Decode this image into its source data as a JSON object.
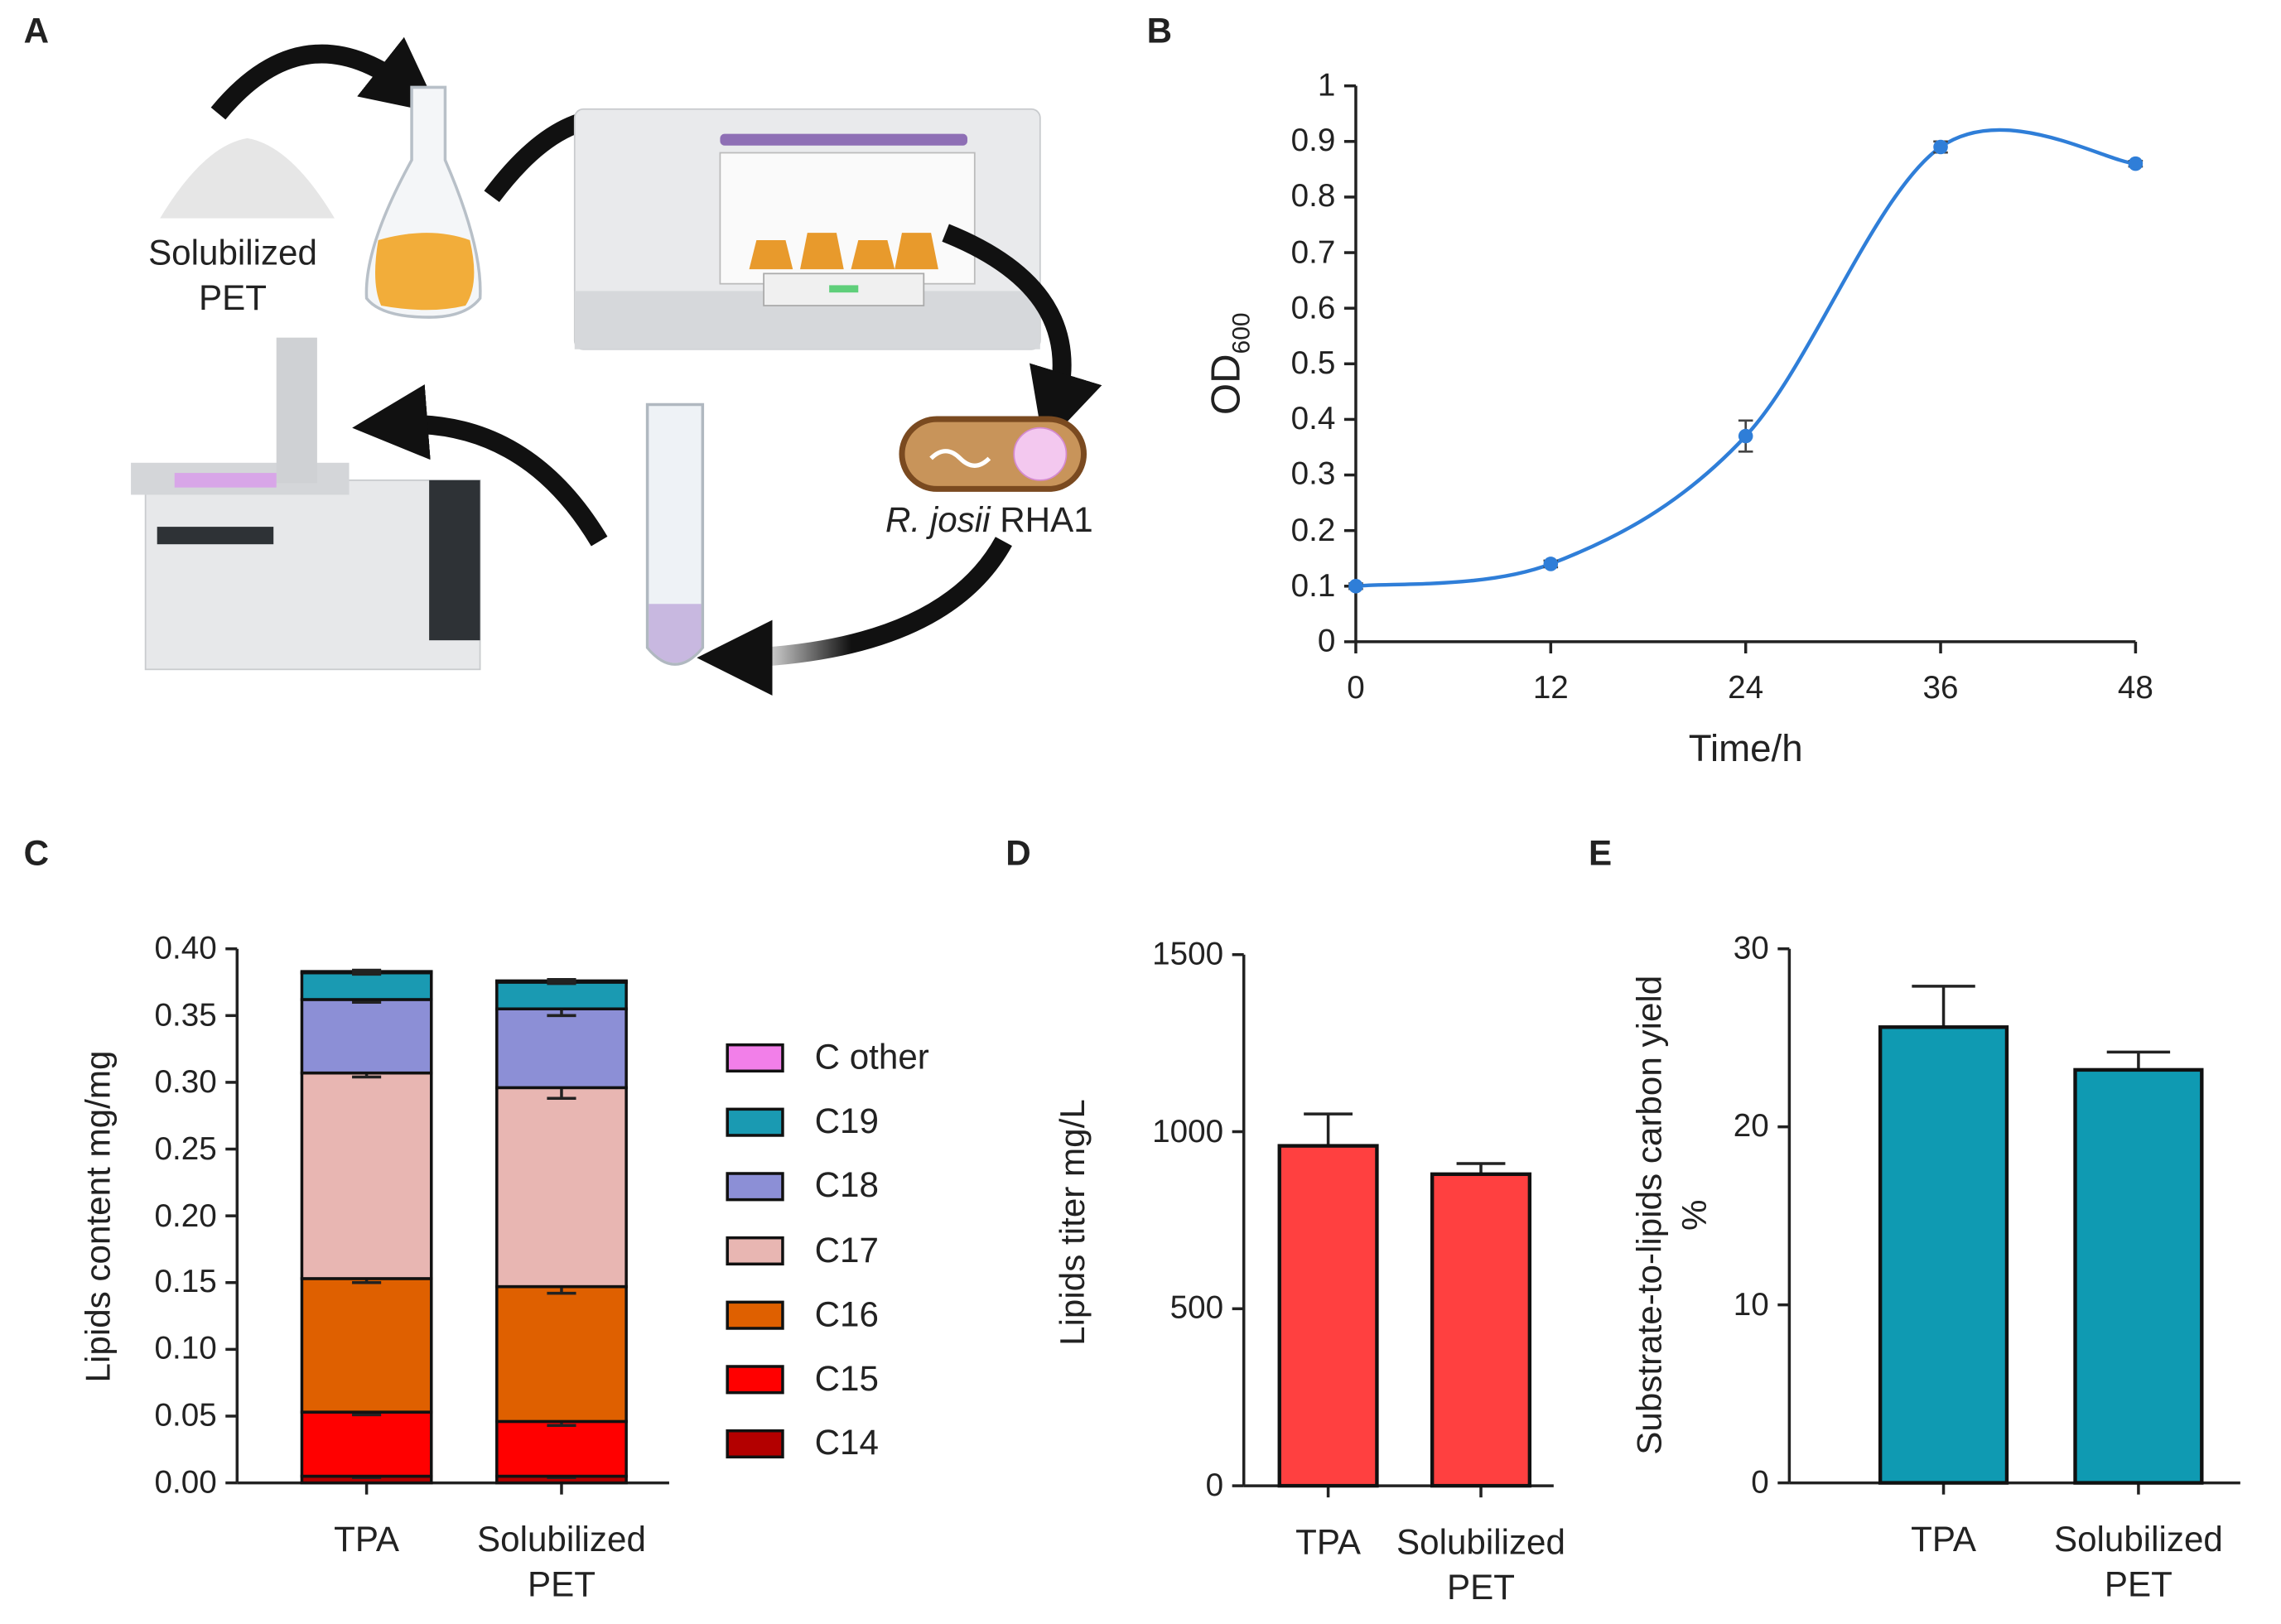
{
  "diagram": {
    "label": "A",
    "substrate": "Solubilized PET",
    "organism_species": "R. josii",
    "organism_strain": "RHA1"
  },
  "chart_data": [
    {
      "label": "B",
      "type": "line",
      "x": [
        0,
        12,
        24,
        36,
        48
      ],
      "values": [
        0.1,
        0.14,
        0.37,
        0.89,
        0.86
      ],
      "errors": [
        0.005,
        0.006,
        0.028,
        0.01,
        0.005
      ],
      "color": "#2f7ed8",
      "xlabel": "Time/h",
      "ylabel": "OD",
      "ylabel_subscript": "600",
      "xlim": [
        0,
        48
      ],
      "xticks": [
        0,
        12,
        24,
        36,
        48
      ],
      "ylim": [
        0,
        1
      ],
      "yticks": [
        0,
        0.1,
        0.2,
        0.3,
        0.4,
        0.5,
        0.6,
        0.7,
        0.8,
        0.9,
        1
      ]
    },
    {
      "label": "C",
      "type": "bar",
      "stacked": true,
      "categories": [
        "TPA",
        "Solubilized PET"
      ],
      "ylabel": "Lipids content mg/mg",
      "series": [
        {
          "name": "C14",
          "color": "#b30000",
          "values": [
            0.005,
            0.005
          ],
          "errors": [
            0.001,
            0.001
          ]
        },
        {
          "name": "C15",
          "color": "#ff0000",
          "values": [
            0.048,
            0.041
          ],
          "errors": [
            0.002,
            0.003
          ]
        },
        {
          "name": "C16",
          "color": "#df6000",
          "values": [
            0.1,
            0.101
          ],
          "errors": [
            0.003,
            0.005
          ]
        },
        {
          "name": "C17",
          "color": "#e8b6b2",
          "values": [
            0.154,
            0.149
          ],
          "errors": [
            0.003,
            0.008
          ]
        },
        {
          "name": "C18",
          "color": "#8c8fd6",
          "values": [
            0.055,
            0.059
          ],
          "errors": [
            0.002,
            0.005
          ]
        },
        {
          "name": "C19",
          "color": "#1a9ab2",
          "values": [
            0.02,
            0.02
          ],
          "errors": [
            0.001,
            0.001
          ]
        },
        {
          "name": "C other",
          "color": "#f27fe9",
          "values": [
            0.001,
            0.001
          ],
          "errors": [
            0.001,
            0.001
          ]
        }
      ],
      "ylim": [
        0,
        0.4
      ],
      "yticks": [
        {
          "value": 0,
          "label": "0.00"
        },
        {
          "value": 0.05,
          "label": "0.05"
        },
        {
          "value": 0.1,
          "label": "0.10"
        },
        {
          "value": 0.15,
          "label": "0.15"
        },
        {
          "value": 0.2,
          "label": "0.20"
        },
        {
          "value": 0.25,
          "label": "0.25"
        },
        {
          "value": 0.3,
          "label": "0.30"
        },
        {
          "value": 0.35,
          "label": "0.35"
        },
        {
          "value": 0.4,
          "label": "0.40"
        }
      ]
    },
    {
      "label": "D",
      "type": "bar",
      "categories": [
        "TPA",
        "Solubilized PET"
      ],
      "values": [
        960,
        880
      ],
      "errors": [
        90,
        30
      ],
      "color": "#ff4040",
      "ylabel": "Lipids titer mg/L",
      "ylim": [
        0,
        1500
      ],
      "yticks": [
        0,
        500,
        1000,
        1500
      ]
    },
    {
      "label": "E",
      "type": "bar",
      "categories": [
        "TPA",
        "Solubilized PET"
      ],
      "values": [
        25.6,
        23.2
      ],
      "errors": [
        2.3,
        1.0
      ],
      "color": "#0f9ab2",
      "ylabel": "Substrate-to-lipids carbon yield %",
      "ylim": [
        0,
        30
      ],
      "yticks": [
        0,
        10,
        20,
        30
      ]
    }
  ]
}
